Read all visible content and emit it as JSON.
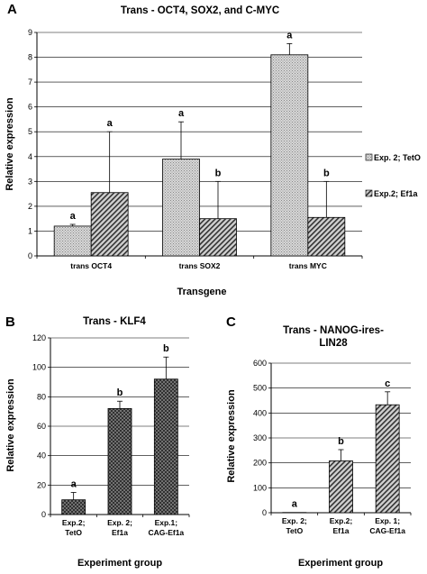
{
  "chart_data": [
    {
      "panel": "A",
      "type": "bar",
      "title": "Trans - OCT4, SOX2, and C-MYC",
      "xlabel": "Transgene",
      "ylabel": "Relative expression",
      "ylim": [
        0,
        9
      ],
      "yticks": [
        0,
        1,
        2,
        3,
        4,
        5,
        6,
        7,
        8,
        9
      ],
      "categories": [
        "trans OCT4",
        "trans SOX2",
        "trans MYC"
      ],
      "series": [
        {
          "name": "Exp. 2; TetO",
          "values": [
            1.2,
            3.9,
            8.1
          ],
          "errors": [
            0.07,
            1.5,
            0.45
          ],
          "labels": [
            "a",
            "a",
            "a"
          ],
          "pattern": "dots"
        },
        {
          "name": "Exp.2; Ef1a",
          "values": [
            2.55,
            1.5,
            1.55
          ],
          "errors": [
            2.45,
            1.5,
            1.45
          ],
          "labels": [
            "a",
            "b",
            "b"
          ],
          "pattern": "hatch"
        }
      ],
      "grid": true,
      "legend": "right"
    },
    {
      "panel": "B",
      "type": "bar",
      "title": "Trans - KLF4",
      "xlabel": "Experiment group",
      "ylabel": "Relative expression",
      "ylim": [
        0,
        120
      ],
      "yticks": [
        0,
        20,
        40,
        60,
        80,
        100,
        120
      ],
      "categories": [
        [
          "Exp.2;",
          "TetO"
        ],
        [
          "Exp. 2;",
          "Ef1a"
        ],
        [
          "Exp.1;",
          "CAG-Ef1a"
        ]
      ],
      "values": [
        10,
        72,
        92
      ],
      "errors": [
        5,
        5,
        15
      ],
      "labels": [
        "a",
        "b",
        "b"
      ],
      "grid": true
    },
    {
      "panel": "C",
      "type": "bar",
      "title": [
        "Trans - NANOG-ires-",
        "LIN28"
      ],
      "xlabel": "Experiment group",
      "ylabel": "Relative expression",
      "ylim": [
        0,
        600
      ],
      "yticks": [
        0,
        100,
        200,
        300,
        400,
        500,
        600
      ],
      "categories": [
        [
          "Exp. 2;",
          "TetO"
        ],
        [
          "Exp.2;",
          "Ef1a"
        ],
        [
          "Exp. 1;",
          "CAG-Ef1a"
        ]
      ],
      "values": [
        1,
        208,
        433
      ],
      "errors": [
        0,
        45,
        52
      ],
      "labels": [
        "a",
        "b",
        "c"
      ],
      "grid": true
    }
  ]
}
